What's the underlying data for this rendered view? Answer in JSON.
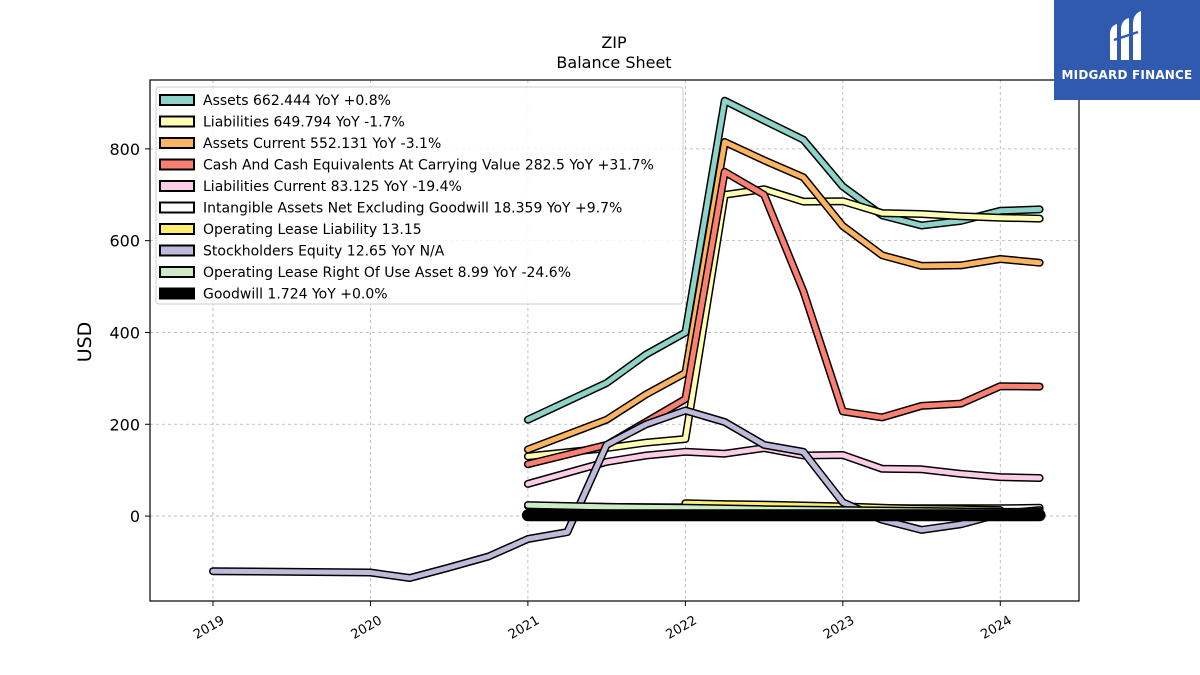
{
  "chart_data": {
    "type": "line",
    "title": "ZIP",
    "subtitle": "Balance  Sheet",
    "ylabel": "USD",
    "xlabel": "",
    "xlim": [
      2018.6,
      2024.5
    ],
    "ylim": [
      -185,
      950
    ],
    "grid": true,
    "legend_position": "top-left",
    "x_ticks": [
      "2019",
      "2020",
      "2021",
      "2022",
      "2023",
      "2024"
    ],
    "y_ticks": [
      "0",
      "200",
      "400",
      "600",
      "800"
    ],
    "series": [
      {
        "name": "Assets  662.444 YoY +0.8%",
        "color": "#8dd3c7",
        "width": 5,
        "x": [
          2021.0,
          2021.5,
          2021.75,
          2022.0,
          2022.25,
          2022.5,
          2022.75,
          2023.0,
          2023.25,
          2023.5,
          2023.75,
          2024.0,
          2024.25
        ],
        "y": [
          210,
          290,
          352,
          400,
          905,
          862,
          820,
          718,
          655,
          633,
          643,
          665,
          668
        ]
      },
      {
        "name": "Liabilities  649.794 YoY -1.7%",
        "color": "#ffffb3",
        "width": 5,
        "x": [
          2021.0,
          2021.5,
          2021.75,
          2022.0,
          2022.25,
          2022.5,
          2022.75,
          2023.0,
          2023.25,
          2023.5,
          2023.75,
          2024.0,
          2024.25
        ],
        "y": [
          130,
          148,
          160,
          168,
          700,
          712,
          685,
          686,
          660,
          658,
          653,
          650,
          648
        ]
      },
      {
        "name": "Assets Current  552.131 YoY -3.1%",
        "color": "#fdb462",
        "width": 5,
        "x": [
          2021.0,
          2021.5,
          2021.75,
          2022.0,
          2022.25,
          2022.5,
          2022.75,
          2023.0,
          2023.25,
          2023.5,
          2023.75,
          2024.0,
          2024.25
        ],
        "y": [
          145,
          210,
          265,
          312,
          815,
          775,
          738,
          632,
          568,
          545,
          546,
          560,
          552
        ]
      },
      {
        "name": "Cash And Cash Equivalents At Carrying Value  282.5 YoY +31.7%",
        "color": "#fb8072",
        "width": 5,
        "x": [
          2021.0,
          2021.5,
          2021.75,
          2022.0,
          2022.25,
          2022.5,
          2022.75,
          2023.0,
          2023.25,
          2023.5,
          2023.75,
          2024.0,
          2024.25
        ],
        "y": [
          113,
          155,
          205,
          255,
          750,
          700,
          490,
          228,
          215,
          240,
          245,
          283,
          282
        ]
      },
      {
        "name": "Liabilities Current  83.125 YoY -19.4%",
        "color": "#fccde5",
        "width": 5,
        "x": [
          2021.0,
          2021.5,
          2021.75,
          2022.0,
          2022.25,
          2022.5,
          2022.75,
          2023.0,
          2023.25,
          2023.5,
          2023.75,
          2024.0,
          2024.25
        ],
        "y": [
          70,
          118,
          132,
          140,
          136,
          148,
          132,
          133,
          103,
          102,
          92,
          85,
          83
        ]
      },
      {
        "name": "Intangible Assets Net Excluding Goodwill  18.359 YoY +9.7%",
        "color": "#ffffff",
        "width": 5,
        "x": [
          2021.0,
          2021.5,
          2022.0,
          2022.5,
          2023.0,
          2023.5,
          2024.0,
          2024.25
        ],
        "y": [
          22,
          20,
          19,
          18,
          17,
          17,
          17,
          18
        ]
      },
      {
        "name": "Operating Lease Liability  13.15",
        "color": "#ffed6f",
        "width": 5,
        "x": [
          2022.0,
          2022.25,
          2022.5,
          2022.75,
          2023.0,
          2023.25,
          2023.5,
          2023.75,
          2024.0
        ],
        "y": [
          28,
          26,
          25,
          23,
          21,
          18,
          16,
          15,
          13
        ]
      },
      {
        "name": "Stockholders Equity  12.65 YoY N/A",
        "color": "#bebada",
        "width": 5,
        "x": [
          2019.0,
          2020.0,
          2020.25,
          2020.5,
          2020.75,
          2021.0,
          2021.25,
          2021.5,
          2021.75,
          2022.0,
          2022.25,
          2022.5,
          2022.75,
          2023.0,
          2023.25,
          2023.5,
          2023.75,
          2024.0,
          2024.25
        ],
        "y": [
          -120,
          -123,
          -135,
          -112,
          -88,
          -50,
          -35,
          155,
          200,
          230,
          205,
          155,
          140,
          30,
          -8,
          -30,
          -18,
          5,
          13
        ]
      },
      {
        "name": "Operating Lease Right Of Use Asset  8.99 YoY -24.6%",
        "color": "#ccebc5",
        "width": 5,
        "x": [
          2021.0,
          2021.5,
          2022.0,
          2022.5,
          2023.0,
          2023.5,
          2024.0,
          2024.25
        ],
        "y": [
          24,
          20,
          18,
          15,
          13,
          11,
          9,
          9
        ]
      },
      {
        "name": "Goodwill  1.724 YoY +0.0%",
        "color": "#000000",
        "width": 9,
        "x": [
          2021.0,
          2021.5,
          2022.0,
          2022.5,
          2023.0,
          2023.5,
          2024.0,
          2024.25
        ],
        "y": [
          2,
          2,
          2,
          2,
          2,
          2,
          2,
          2
        ]
      }
    ]
  },
  "logo": {
    "text": "MIDGARD FINANCE",
    "background": "#2f5aad"
  }
}
